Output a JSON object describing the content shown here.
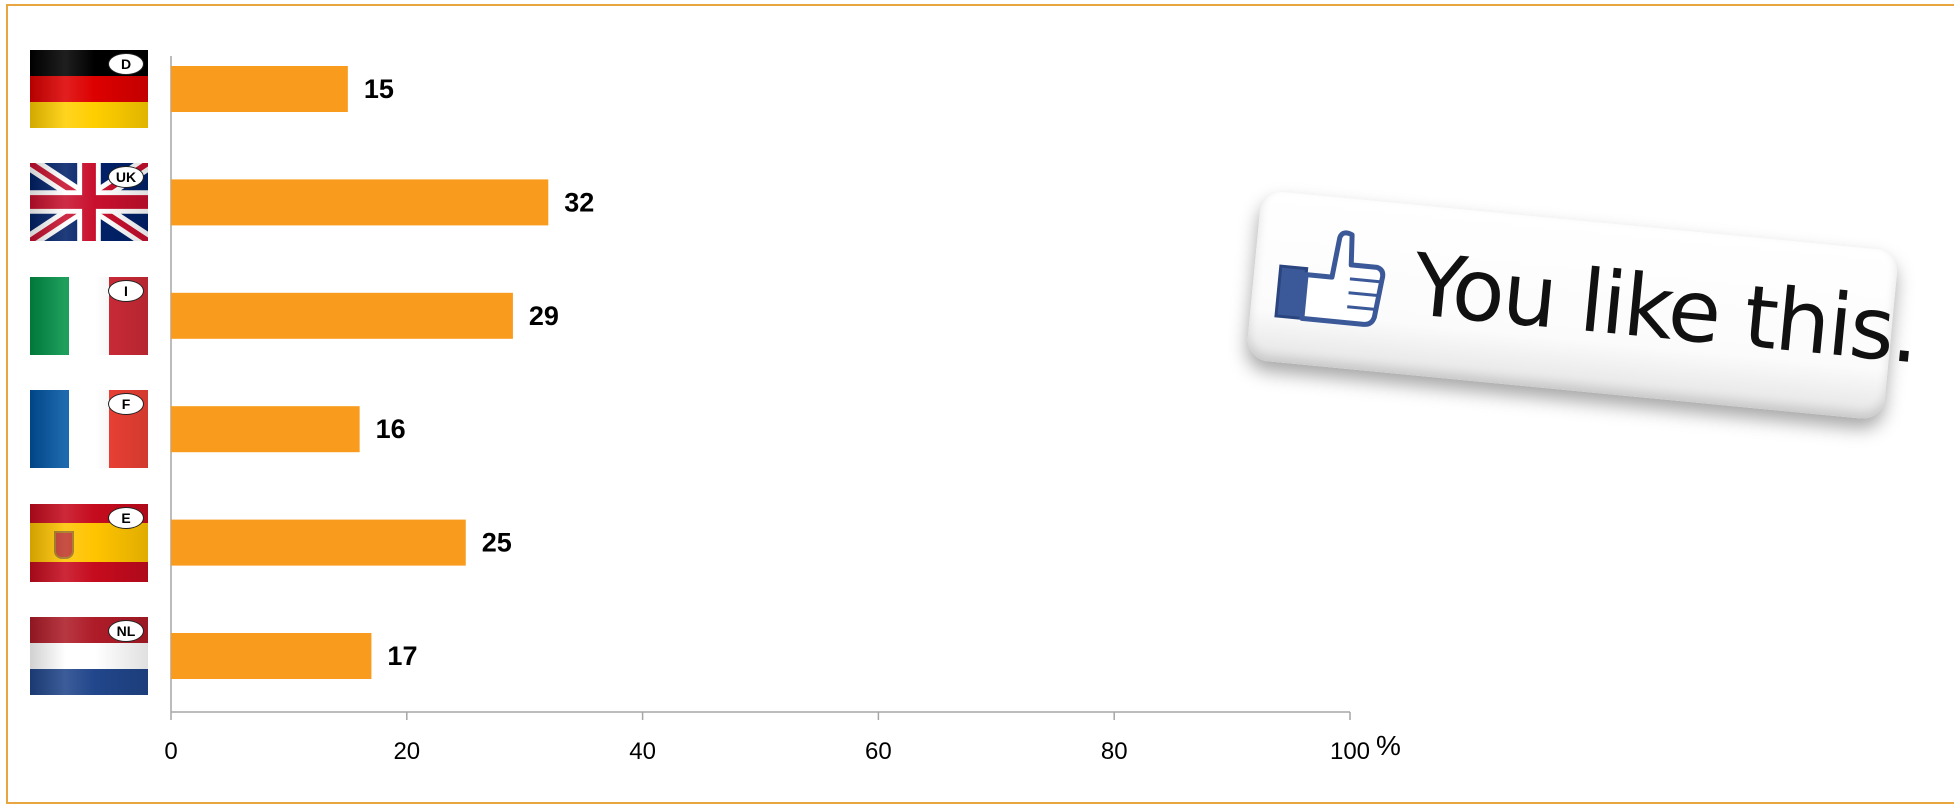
{
  "chart_data": {
    "type": "bar",
    "orientation": "horizontal",
    "categories": [
      "D",
      "UK",
      "I",
      "F",
      "E",
      "NL"
    ],
    "values": [
      15,
      32,
      29,
      16,
      25,
      17
    ],
    "xlim": [
      0,
      100
    ],
    "x_ticks": [
      0,
      20,
      40,
      60,
      80,
      100
    ],
    "unit_label": "%",
    "bar_color": "#f99b1c",
    "grid": false,
    "legend": "none",
    "data_labels": true
  },
  "flags": [
    {
      "code": "D",
      "country": "Germany",
      "colors": [
        "#000000",
        "#dd0000",
        "#ffce00"
      ]
    },
    {
      "code": "UK",
      "country": "United Kingdom",
      "colors": [
        "#012169",
        "#ffffff",
        "#c8102e"
      ]
    },
    {
      "code": "I",
      "country": "Italy",
      "colors": [
        "#009246",
        "#ffffff",
        "#ce2b37"
      ]
    },
    {
      "code": "F",
      "country": "France",
      "colors": [
        "#0055a4",
        "#ffffff",
        "#ef4135"
      ]
    },
    {
      "code": "E",
      "country": "Spain",
      "colors": [
        "#c60b1e",
        "#ffc400",
        "#c60b1e"
      ]
    },
    {
      "code": "NL",
      "country": "Netherlands",
      "colors": [
        "#ae1c28",
        "#ffffff",
        "#21468b"
      ]
    }
  ],
  "like_badge": {
    "text": "You like this.",
    "icon": "thumbs-up-icon",
    "icon_color": "#3b5998"
  },
  "colors": {
    "frame": "#e8a640",
    "axis": "#a6a6a6"
  }
}
